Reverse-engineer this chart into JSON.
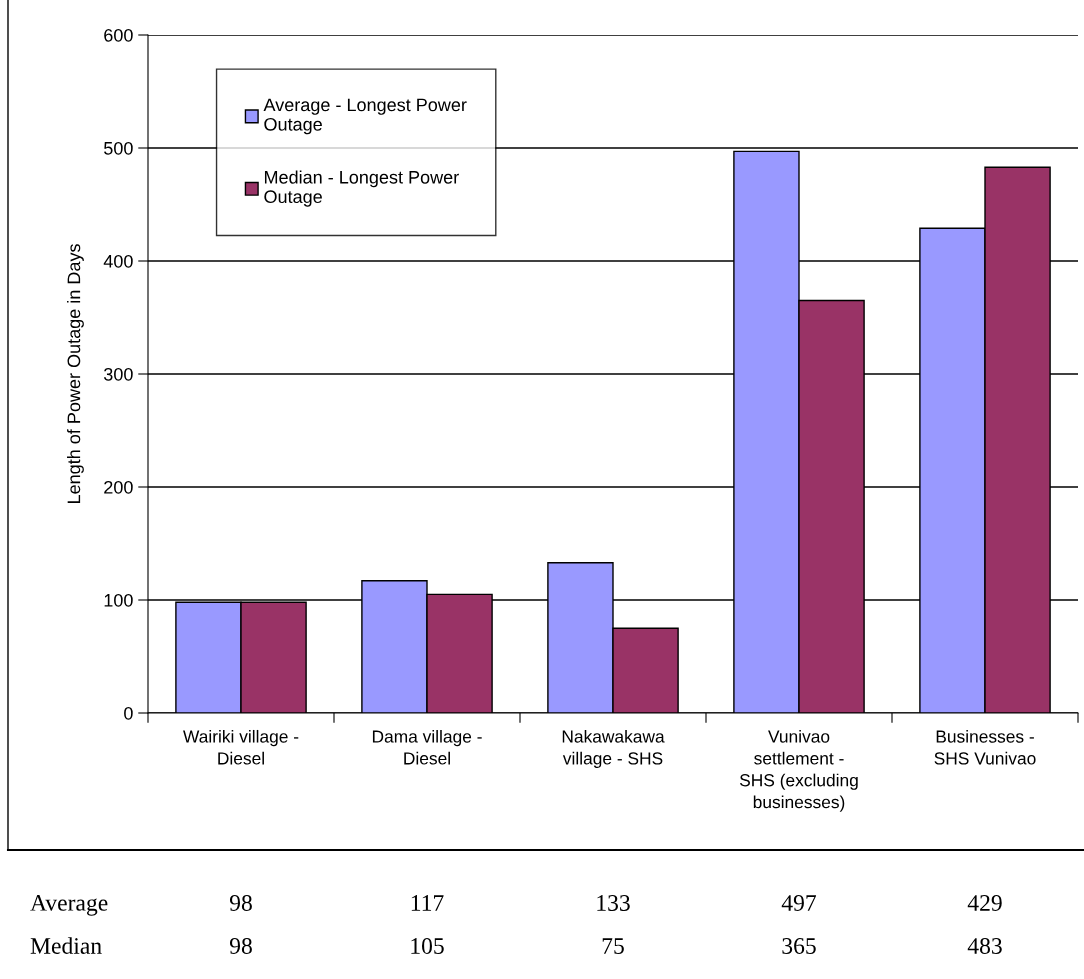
{
  "chart_data": {
    "type": "bar",
    "ylabel": "Length of Power Outage in Days",
    "categories": [
      "Wairiki village -\nDiesel",
      "Dama village -\nDiesel",
      "Nakawakawa\nvillage - SHS",
      "Vunivao\nsettlement -\nSHS (excluding\nbusinesses)",
      "Businesses -\nSHS Vunivao"
    ],
    "series": [
      {
        "name": "Average - Longest Power Outage",
        "color": "#9999ff",
        "values": [
          98,
          117,
          133,
          497,
          429
        ]
      },
      {
        "name": "Median - Longest Power Outage",
        "color": "#993366",
        "values": [
          98,
          105,
          75,
          365,
          483
        ]
      }
    ],
    "ylim": [
      0,
      600
    ],
    "yticks": [
      0,
      100,
      200,
      300,
      400,
      500,
      600
    ],
    "grid": "y",
    "legend": "top left",
    "data_labels": true,
    "annotations": [
      "Average",
      "Median"
    ]
  }
}
